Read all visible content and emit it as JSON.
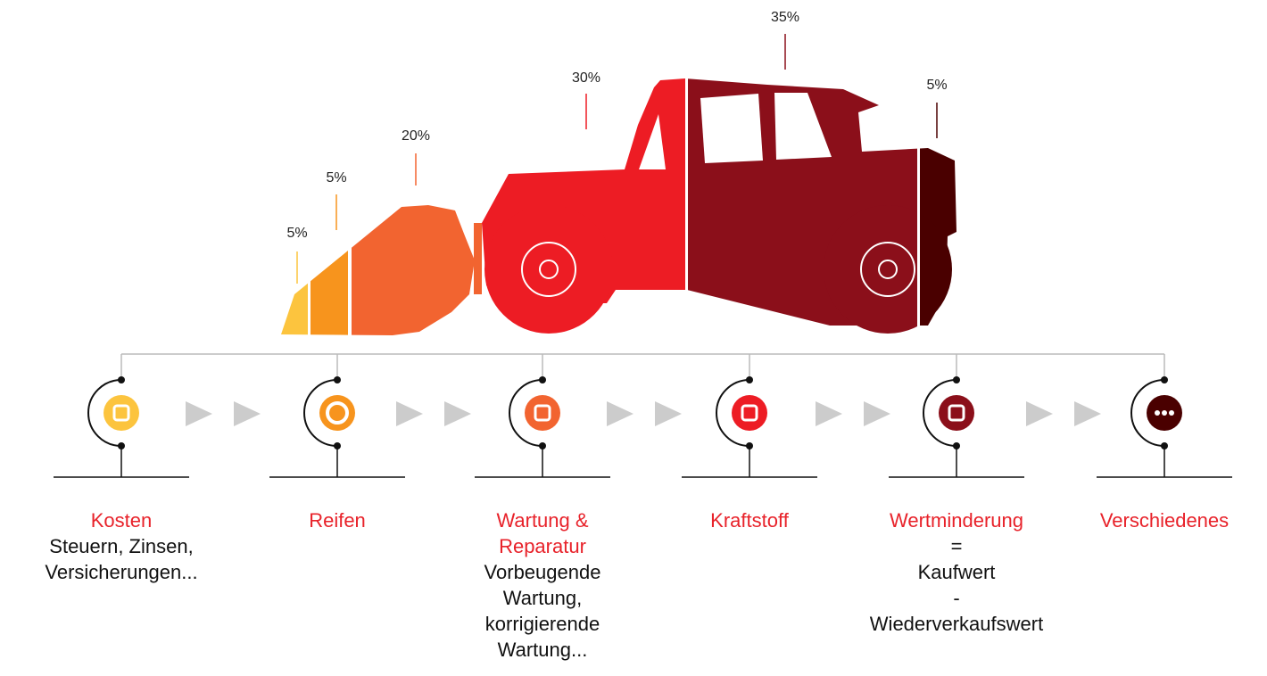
{
  "segments": [
    {
      "percent": "5%"
    },
    {
      "percent": "5%"
    },
    {
      "percent": "20%"
    },
    {
      "percent": "30%"
    },
    {
      "percent": "35%"
    },
    {
      "percent": "5%"
    }
  ],
  "items": [
    {
      "title": [
        "Kosten"
      ],
      "description": [
        "Steuern, Zinsen,",
        "Versicherungen..."
      ]
    },
    {
      "title": [
        "Reifen"
      ],
      "description": []
    },
    {
      "title": [
        "Wartung &",
        "Reparatur"
      ],
      "description": [
        "Vorbeugende",
        "Wartung,",
        "korrigierende",
        "Wartung..."
      ]
    },
    {
      "title": [
        "Kraftstoff"
      ],
      "description": []
    },
    {
      "title": [
        "Wertminderung"
      ],
      "description": [
        "=",
        "Kaufwert",
        "-",
        "Wiederverkaufswert"
      ]
    },
    {
      "title": [
        "Verschiedenes"
      ],
      "description": []
    }
  ]
}
